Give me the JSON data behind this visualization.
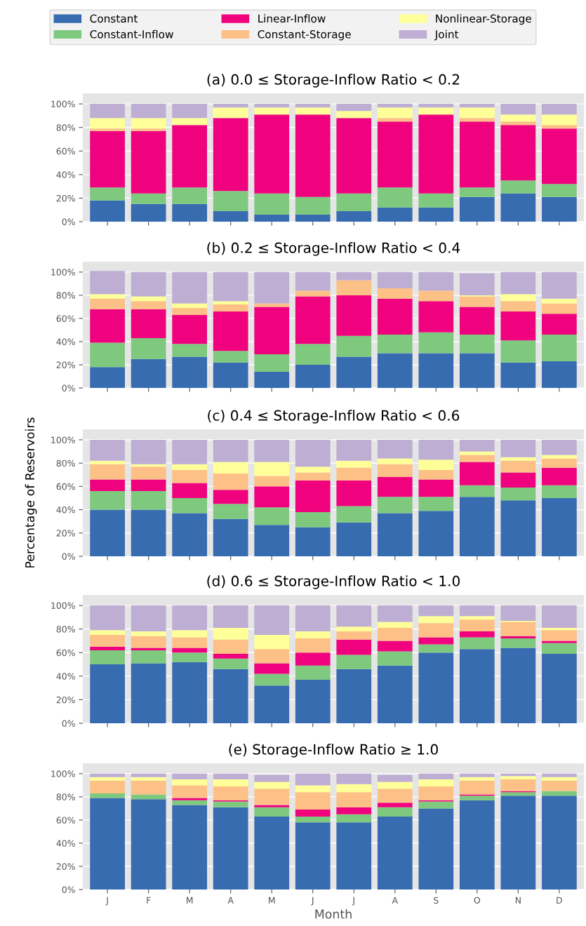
{
  "chart_data": [
    {
      "type": "bar",
      "stacked": true,
      "title": "(a) 0.0 ≤ Storage-Inflow Ratio < 0.2",
      "categories": [
        null,
        null,
        null,
        null,
        null,
        null,
        null,
        null,
        null,
        null,
        null,
        null
      ],
      "ylim": [
        0,
        109
      ],
      "yticks": [
        {
          "value": 0,
          "label": "0%"
        },
        {
          "value": 20,
          "label": "20%"
        },
        {
          "value": 40,
          "label": "40%"
        },
        {
          "value": 60,
          "label": "60%"
        },
        {
          "value": 80,
          "label": "80%"
        },
        {
          "value": 100,
          "label": "100%"
        }
      ],
      "grid": "y",
      "legend": "top",
      "series": [
        {
          "name": "Constant",
          "color": "#386cb0",
          "values": [
            18,
            15,
            15,
            9,
            6,
            6,
            9,
            12,
            12,
            21,
            24,
            21
          ]
        },
        {
          "name": "Constant-Inflow",
          "color": "#7fc97f",
          "values": [
            11,
            9,
            14,
            17,
            18,
            15,
            15,
            17,
            12,
            8,
            11,
            11
          ]
        },
        {
          "name": "Linear-Inflow",
          "color": "#f0027f",
          "values": [
            48,
            53,
            53,
            62,
            67,
            70,
            64,
            56,
            67,
            56,
            47,
            47
          ]
        },
        {
          "name": "Constant-Storage",
          "color": "#fdc086",
          "values": [
            2,
            2,
            0,
            0,
            0,
            0,
            0,
            3,
            0,
            3,
            3,
            3
          ]
        },
        {
          "name": "Nonlinear-Storage",
          "color": "#ffff99",
          "values": [
            9,
            9,
            6,
            9,
            6,
            6,
            6,
            9,
            6,
            9,
            6,
            9
          ]
        },
        {
          "name": "Joint",
          "color": "#beaed4",
          "values": [
            12,
            12,
            12,
            3,
            3,
            3,
            6,
            3,
            3,
            3,
            9,
            9
          ]
        }
      ]
    },
    {
      "type": "bar",
      "stacked": true,
      "title": "(b) 0.2 ≤ Storage-Inflow Ratio < 0.4",
      "categories": [
        null,
        null,
        null,
        null,
        null,
        null,
        null,
        null,
        null,
        null,
        null,
        null
      ],
      "ylim": [
        0,
        109
      ],
      "yticks": [
        {
          "value": 0,
          "label": "0%"
        },
        {
          "value": 20,
          "label": "20%"
        },
        {
          "value": 40,
          "label": "40%"
        },
        {
          "value": 60,
          "label": "60%"
        },
        {
          "value": 80,
          "label": "80%"
        },
        {
          "value": 100,
          "label": "100%"
        }
      ],
      "grid": "y",
      "series": [
        {
          "color": "#386cb0",
          "values": [
            18,
            25,
            27,
            22,
            14,
            20,
            27,
            30,
            30,
            30,
            22,
            23
          ]
        },
        {
          "color": "#7fc97f",
          "values": [
            21,
            18,
            11,
            10,
            15,
            18,
            18,
            16,
            18,
            16,
            19,
            23
          ]
        },
        {
          "color": "#f0027f",
          "values": [
            29,
            25,
            25,
            34,
            41,
            41,
            35,
            31,
            27,
            24,
            25,
            18
          ]
        },
        {
          "color": "#fdc086",
          "values": [
            9,
            7,
            6,
            6,
            3,
            5,
            13,
            9,
            9,
            9,
            9,
            9
          ]
        },
        {
          "color": "#ffff99",
          "values": [
            4,
            4,
            4,
            3,
            0,
            0,
            0,
            0,
            0,
            1,
            6,
            4
          ]
        },
        {
          "color": "#beaed4",
          "values": [
            20,
            21,
            27,
            25,
            27,
            16,
            7,
            14,
            16,
            19,
            19,
            23
          ]
        }
      ]
    },
    {
      "type": "bar",
      "stacked": true,
      "title": "(c) 0.4 ≤ Storage-Inflow Ratio < 0.6",
      "ylabel": "Percentage of Reservoirs",
      "categories": [
        null,
        null,
        null,
        null,
        null,
        null,
        null,
        null,
        null,
        null,
        null,
        null
      ],
      "ylim": [
        0,
        109
      ],
      "yticks": [
        {
          "value": 0,
          "label": "0%"
        },
        {
          "value": 20,
          "label": "20%"
        },
        {
          "value": 40,
          "label": "40%"
        },
        {
          "value": 60,
          "label": "60%"
        },
        {
          "value": 80,
          "label": "80%"
        },
        {
          "value": 100,
          "label": "100%"
        }
      ],
      "grid": "y",
      "series": [
        {
          "color": "#386cb0",
          "values": [
            40,
            40,
            37,
            32,
            27,
            25,
            29,
            37,
            39,
            51,
            48,
            50
          ]
        },
        {
          "color": "#7fc97f",
          "values": [
            16,
            16,
            13,
            13,
            15,
            13,
            14,
            14,
            12,
            10,
            11,
            11
          ]
        },
        {
          "color": "#f0027f",
          "values": [
            10,
            10,
            13,
            12,
            18,
            27,
            22,
            17,
            15,
            20,
            13,
            15
          ]
        },
        {
          "color": "#fdc086",
          "values": [
            13,
            11,
            11,
            14,
            9,
            7,
            11,
            11,
            8,
            6,
            10,
            8
          ]
        },
        {
          "color": "#ffff99",
          "values": [
            3,
            2,
            5,
            10,
            12,
            5,
            6,
            5,
            9,
            3,
            3,
            3
          ]
        },
        {
          "color": "#beaed4",
          "values": [
            18,
            21,
            21,
            19,
            19,
            23,
            18,
            16,
            17,
            10,
            15,
            13
          ]
        }
      ]
    },
    {
      "type": "bar",
      "stacked": true,
      "title": "(d) 0.6 ≤ Storage-Inflow Ratio < 1.0",
      "categories": [
        null,
        null,
        null,
        null,
        null,
        null,
        null,
        null,
        null,
        null,
        null,
        null
      ],
      "ylim": [
        0,
        109
      ],
      "yticks": [
        {
          "value": 0,
          "label": "0%"
        },
        {
          "value": 20,
          "label": "20%"
        },
        {
          "value": 40,
          "label": "40%"
        },
        {
          "value": 60,
          "label": "60%"
        },
        {
          "value": 80,
          "label": "80%"
        },
        {
          "value": 100,
          "label": "100%"
        }
      ],
      "grid": "y",
      "series": [
        {
          "color": "#386cb0",
          "values": [
            50,
            51,
            52,
            46,
            32,
            37,
            46,
            49,
            60,
            63,
            64,
            59
          ]
        },
        {
          "color": "#7fc97f",
          "values": [
            12,
            11,
            8,
            9,
            10,
            12,
            12,
            12,
            7,
            10,
            8,
            9
          ]
        },
        {
          "color": "#f0027f",
          "values": [
            3,
            2,
            4,
            4,
            9,
            11,
            13,
            9,
            6,
            5,
            2,
            2
          ]
        },
        {
          "color": "#fdc086",
          "values": [
            10,
            10,
            9,
            12,
            12,
            12,
            7,
            11,
            12,
            10,
            12,
            9
          ]
        },
        {
          "color": "#ffff99",
          "values": [
            4,
            4,
            6,
            10,
            12,
            6,
            4,
            5,
            6,
            3,
            1,
            2
          ]
        },
        {
          "color": "#beaed4",
          "values": [
            21,
            22,
            21,
            19,
            25,
            22,
            18,
            14,
            9,
            9,
            13,
            19
          ]
        }
      ]
    },
    {
      "type": "bar",
      "stacked": true,
      "title": "(e) Storage-Inflow Ratio ≥ 1.0",
      "xlabel": "Month",
      "categories": [
        "J",
        "F",
        "M",
        "A",
        "M",
        "J",
        "J",
        "A",
        "S",
        "O",
        "N",
        "D"
      ],
      "ylim": [
        0,
        109
      ],
      "yticks": [
        {
          "value": 0,
          "label": "0%"
        },
        {
          "value": 20,
          "label": "20%"
        },
        {
          "value": 40,
          "label": "40%"
        },
        {
          "value": 60,
          "label": "60%"
        },
        {
          "value": 80,
          "label": "80%"
        },
        {
          "value": 100,
          "label": "100%"
        }
      ],
      "grid": "y",
      "series": [
        {
          "color": "#386cb0",
          "values": [
            79,
            78,
            73,
            71,
            63,
            58,
            58,
            63,
            70,
            77,
            81,
            81
          ]
        },
        {
          "color": "#7fc97f",
          "values": [
            4,
            4,
            4,
            5,
            8,
            5,
            7,
            8,
            6,
            4,
            3,
            4
          ]
        },
        {
          "color": "#f0027f",
          "values": [
            0,
            0,
            2,
            1,
            2,
            6,
            6,
            4,
            1,
            1,
            1,
            0
          ]
        },
        {
          "color": "#fdc086",
          "values": [
            11,
            12,
            11,
            12,
            14,
            15,
            13,
            12,
            12,
            12,
            10,
            9
          ]
        },
        {
          "color": "#ffff99",
          "values": [
            3,
            3,
            5,
            6,
            6,
            6,
            7,
            6,
            6,
            3,
            3,
            3
          ]
        },
        {
          "color": "#beaed4",
          "values": [
            3,
            3,
            5,
            5,
            6,
            10,
            9,
            6,
            5,
            3,
            2,
            3
          ]
        }
      ]
    }
  ]
}
